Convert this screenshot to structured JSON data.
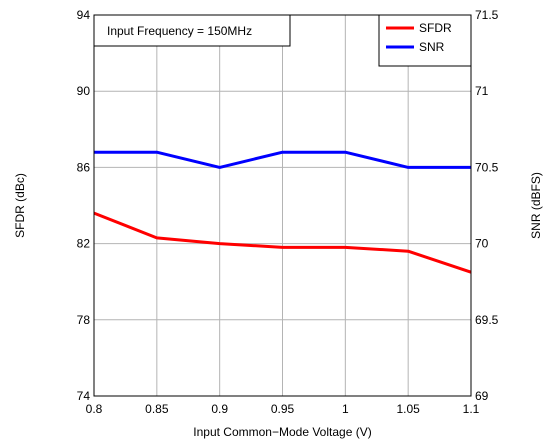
{
  "chart_data": {
    "type": "line",
    "xlabel": "Input Common−Mode Voltage (V)",
    "ylabel_left": "SFDR (dBc)",
    "ylabel_right": "SNR (dBFS)",
    "annotation": "Input Frequency = 150MHz",
    "x_ticks": [
      "0.8",
      "0.85",
      "0.9",
      "0.95",
      "1",
      "1.05",
      "1.1"
    ],
    "x_range": [
      0.8,
      1.1
    ],
    "y_left_ticks": [
      "74",
      "78",
      "82",
      "86",
      "90",
      "94"
    ],
    "y_left_range": [
      74,
      94
    ],
    "y_right_ticks": [
      "69",
      "69.5",
      "70",
      "70.5",
      "71",
      "71.5"
    ],
    "y_right_range": [
      69,
      71.5
    ],
    "grid": true,
    "legend_position": "top-right",
    "series": [
      {
        "name": "SFDR",
        "axis": "left",
        "color": "#ff0000",
        "x": [
          0.8,
          0.85,
          0.9,
          0.95,
          1.0,
          1.05,
          1.1
        ],
        "y": [
          83.6,
          82.3,
          82.0,
          81.8,
          81.8,
          81.6,
          80.5
        ]
      },
      {
        "name": "SNR",
        "axis": "right",
        "color": "#0000ff",
        "x": [
          0.8,
          0.85,
          0.9,
          0.95,
          1.0,
          1.05,
          1.1
        ],
        "y": [
          70.6,
          70.6,
          70.5,
          70.6,
          70.6,
          70.5,
          70.5
        ]
      }
    ]
  }
}
